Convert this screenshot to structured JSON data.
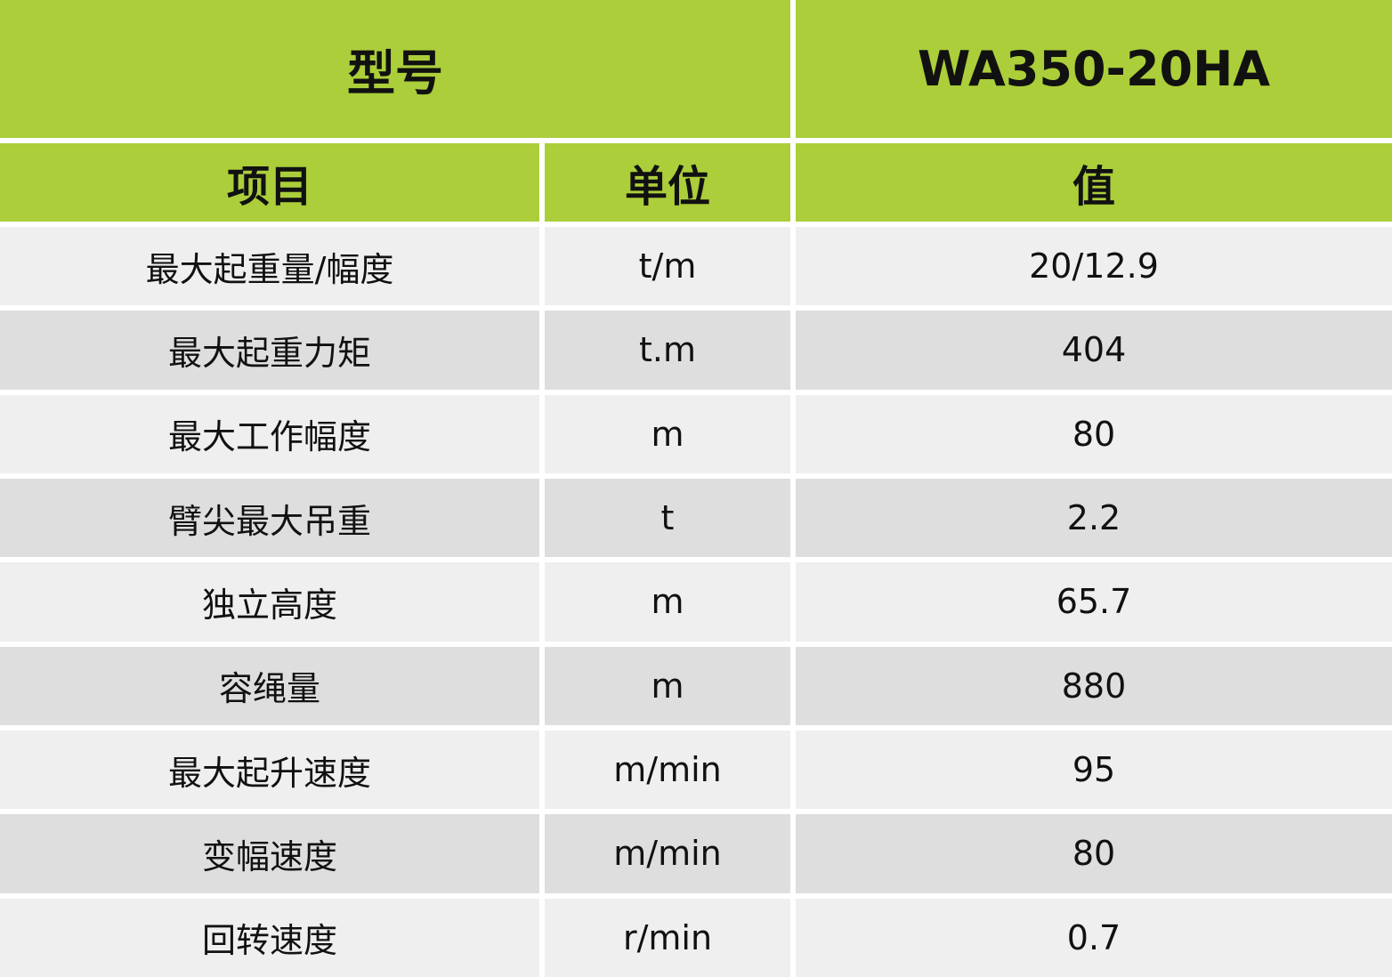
{
  "header": {
    "model_label": "型号",
    "model_value": "WA350-20HA"
  },
  "columns": [
    "项目",
    "单位",
    "值"
  ],
  "rows": [
    {
      "item": "最大起重量/幅度",
      "unit": "t/m",
      "value": "20/12.9"
    },
    {
      "item": "最大起重力矩",
      "unit": "t.m",
      "value": "404"
    },
    {
      "item": "最大工作幅度",
      "unit": "m",
      "value": "80"
    },
    {
      "item": "臂尖最大吊重",
      "unit": "t",
      "value": "2.2"
    },
    {
      "item": "独立高度",
      "unit": "m",
      "value": "65.7"
    },
    {
      "item": "容绳量",
      "unit": "m",
      "value": "880"
    },
    {
      "item": "最大起升速度",
      "unit": "m/min",
      "value": "95"
    },
    {
      "item": "变幅速度",
      "unit": "m/min",
      "value": "80"
    },
    {
      "item": "回转速度",
      "unit": "r/min",
      "value": "0.7"
    }
  ],
  "colors": {
    "header_green": "#abce3a",
    "row_light": "#efefef",
    "row_dark": "#dedede"
  }
}
